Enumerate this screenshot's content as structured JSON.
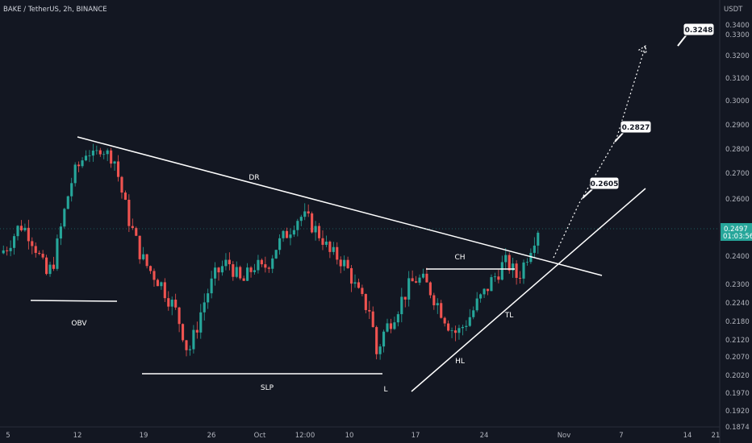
{
  "header": {
    "symbol": "BAKE / TetherUS, 2h, BINANCE"
  },
  "axis": {
    "currency": "USDT"
  },
  "current_price": {
    "value": "0.2497",
    "countdown": "01:03:56",
    "color": "#26a69a"
  },
  "colors": {
    "background": "#131722",
    "up": "#26a69a",
    "down": "#ef5350",
    "annotation": "#ffffff",
    "axis_text": "#b2b5be"
  },
  "chart_data": {
    "type": "candlestick",
    "title": "BAKE / TetherUS, 2h, BINANCE",
    "x_tick_labels": [
      "5",
      "12",
      "19",
      "26",
      "Oct",
      "12:00",
      "10",
      "17",
      "24",
      "Nov",
      "7",
      "14",
      "21"
    ],
    "y_tick_labels": [
      "0.3400",
      "0.3300",
      "0.3200",
      "0.3100",
      "0.3000",
      "0.2900",
      "0.2800",
      "0.2700",
      "0.2600",
      "0.2400",
      "0.2300",
      "0.2240",
      "0.2180",
      "0.2120",
      "0.2070",
      "0.2020",
      "0.1970",
      "0.1920",
      "0.1874"
    ],
    "y_tick_values": [
      0.34,
      0.33,
      0.32,
      0.31,
      0.3,
      0.29,
      0.28,
      0.27,
      0.26,
      0.24,
      0.23,
      0.224,
      0.218,
      0.212,
      0.207,
      0.202,
      0.197,
      0.192,
      0.1874
    ],
    "price_path": [
      [
        0,
        0.241
      ],
      [
        2,
        0.243
      ],
      [
        4,
        0.247
      ],
      [
        6,
        0.251
      ],
      [
        8,
        0.249
      ],
      [
        10,
        0.245
      ],
      [
        12,
        0.239
      ],
      [
        14,
        0.233
      ],
      [
        16,
        0.238
      ],
      [
        18,
        0.249
      ],
      [
        20,
        0.26
      ],
      [
        22,
        0.27
      ],
      [
        24,
        0.274
      ],
      [
        26,
        0.28
      ],
      [
        28,
        0.276
      ],
      [
        30,
        0.281
      ],
      [
        32,
        0.278
      ],
      [
        34,
        0.276
      ],
      [
        36,
        0.264
      ],
      [
        38,
        0.254
      ],
      [
        40,
        0.247
      ],
      [
        42,
        0.24
      ],
      [
        44,
        0.236
      ],
      [
        46,
        0.233
      ],
      [
        48,
        0.23
      ],
      [
        50,
        0.226
      ],
      [
        52,
        0.222
      ],
      [
        54,
        0.216
      ],
      [
        56,
        0.208
      ],
      [
        58,
        0.214
      ],
      [
        60,
        0.222
      ],
      [
        62,
        0.228
      ],
      [
        64,
        0.233
      ],
      [
        66,
        0.236
      ],
      [
        68,
        0.238
      ],
      [
        70,
        0.234
      ],
      [
        72,
        0.23
      ],
      [
        74,
        0.234
      ],
      [
        76,
        0.237
      ],
      [
        78,
        0.235
      ],
      [
        80,
        0.238
      ],
      [
        82,
        0.243
      ],
      [
        84,
        0.246
      ],
      [
        86,
        0.249
      ],
      [
        88,
        0.253
      ],
      [
        90,
        0.254
      ],
      [
        92,
        0.252
      ],
      [
        94,
        0.249
      ],
      [
        96,
        0.246
      ],
      [
        98,
        0.241
      ],
      [
        100,
        0.24
      ],
      [
        102,
        0.238
      ],
      [
        104,
        0.234
      ],
      [
        106,
        0.228
      ],
      [
        108,
        0.224
      ],
      [
        110,
        0.222
      ],
      [
        112,
        0.208
      ],
      [
        114,
        0.214
      ],
      [
        116,
        0.218
      ],
      [
        118,
        0.222
      ],
      [
        120,
        0.226
      ],
      [
        122,
        0.23
      ],
      [
        124,
        0.232
      ],
      [
        126,
        0.231
      ],
      [
        128,
        0.228
      ],
      [
        130,
        0.224
      ],
      [
        132,
        0.22
      ],
      [
        134,
        0.216
      ],
      [
        136,
        0.214
      ],
      [
        138,
        0.217
      ],
      [
        140,
        0.22
      ],
      [
        142,
        0.224
      ],
      [
        144,
        0.227
      ],
      [
        146,
        0.231
      ],
      [
        148,
        0.234
      ],
      [
        150,
        0.238
      ],
      [
        152,
        0.236
      ],
      [
        154,
        0.232
      ],
      [
        156,
        0.238
      ],
      [
        158,
        0.244
      ],
      [
        160,
        0.2497
      ]
    ],
    "annotations": {
      "trendlines": [
        "DR",
        "TL",
        "OBV",
        "SLP",
        "CH"
      ],
      "labels": [
        "DR",
        "OBV",
        "SLP",
        "L",
        "CH",
        "HL",
        "TL"
      ],
      "targets": [
        "0.2605",
        "0.2827",
        "0.3248"
      ]
    }
  }
}
